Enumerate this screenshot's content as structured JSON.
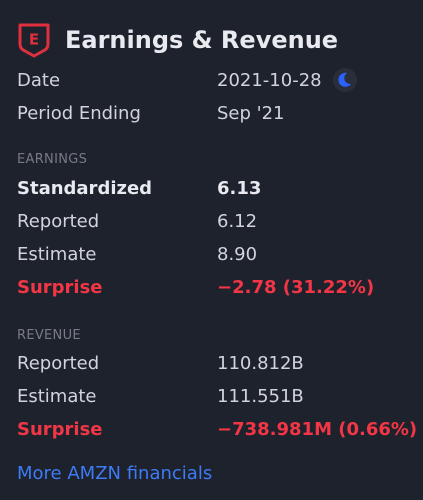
{
  "header": {
    "icon": "E",
    "title": "Earnings & Revenue"
  },
  "info": [
    {
      "label": "Date",
      "value": "2021-10-28"
    },
    {
      "label": "Period Ending",
      "value": "Sep '21"
    }
  ],
  "sections": [
    {
      "title": "EARNINGS",
      "rows": [
        {
          "label": "Standardized",
          "value": "6.13"
        },
        {
          "label": "Reported",
          "value": "6.12"
        },
        {
          "label": "Estimate",
          "value": "8.90"
        },
        {
          "label": "Surprise",
          "value": "−2.78 (31.22%)"
        }
      ]
    },
    {
      "title": "REVENUE",
      "rows": [
        {
          "label": "Reported",
          "value": "110.812B"
        },
        {
          "label": "Estimate",
          "value": "111.551B"
        },
        {
          "label": "Surprise",
          "value": "−738.981M (0.66%)"
        }
      ]
    }
  ],
  "link": "More AMZN financials"
}
